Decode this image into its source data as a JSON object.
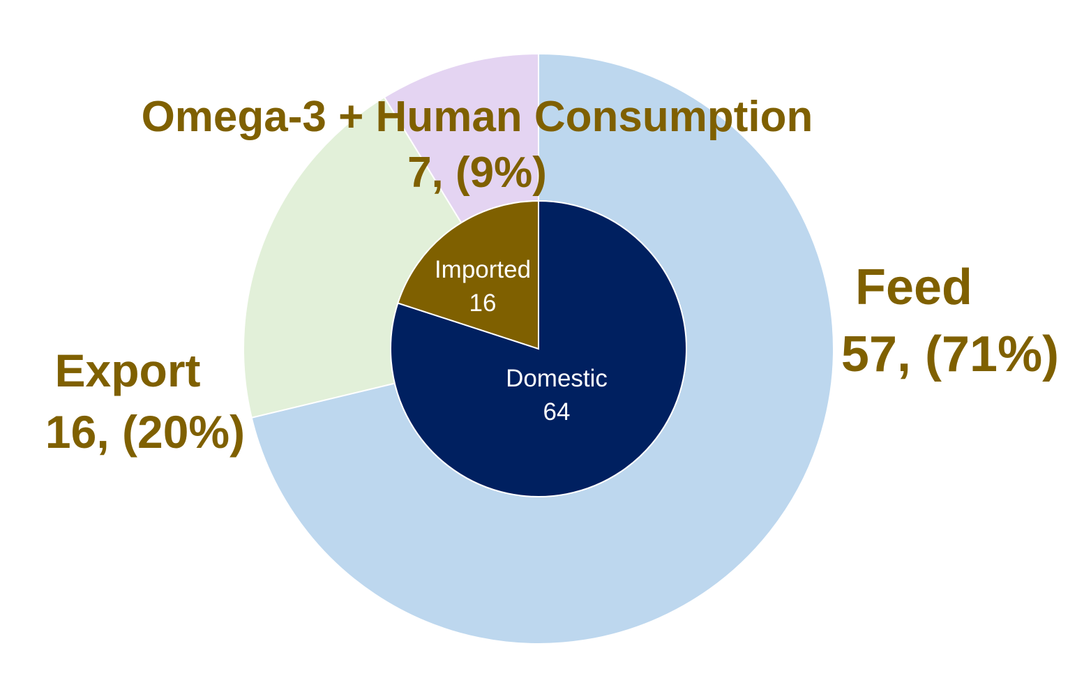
{
  "chart_data": {
    "type": "pie",
    "outer_ring": {
      "slices": [
        {
          "name": "Feed",
          "value_label": "57, (71%)",
          "value": 57,
          "percent": 71,
          "color": "#bdd7ee"
        },
        {
          "name": "Export",
          "value_label": "16, (20%)",
          "value": 16,
          "percent": 20,
          "color": "#e2f0d9"
        },
        {
          "name": "Omega-3 + Human Consumption",
          "value_label": "7, (9%)",
          "value": 7,
          "percent": 9,
          "color": "#e4d4f2"
        }
      ]
    },
    "inner_pie": {
      "slices": [
        {
          "name": "Domestic",
          "value_label": "64",
          "value": 64,
          "color": "#002060"
        },
        {
          "name": "Imported",
          "value_label": "16",
          "value": 16,
          "color": "#7f6000"
        }
      ]
    },
    "label_color": "#7f6000",
    "inner_label_color": "#ffffff"
  }
}
